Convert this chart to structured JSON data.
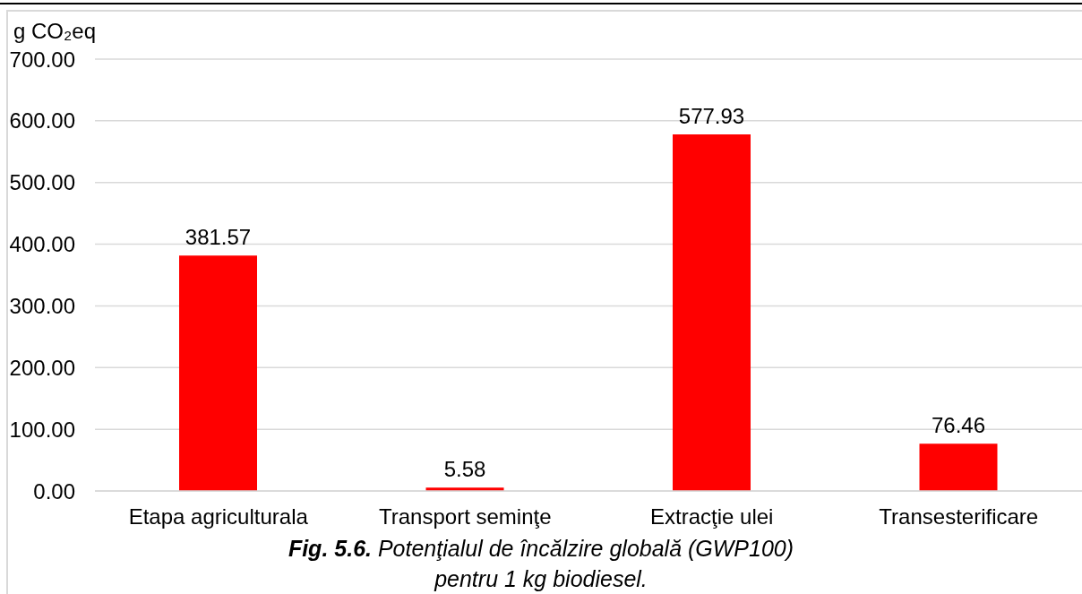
{
  "chart_data": {
    "type": "bar",
    "title": "Fig. 5.6. Potenţialul de încălzire globală (GWP100) pentru 1 kg biodiesel.",
    "ylabel": "g CO₂eq",
    "categories": [
      "Etapa agriculturala",
      "Transport seminţe",
      "Extracţie ulei",
      "Transesterificare"
    ],
    "values": [
      381.57,
      5.58,
      577.93,
      76.46
    ],
    "color": "#ff0000",
    "ylim": [
      0,
      700
    ],
    "yticks": [
      {
        "value": 0,
        "label": "0.00"
      },
      {
        "value": 100,
        "label": "100.00"
      },
      {
        "value": 200,
        "label": "200.00"
      },
      {
        "value": 300,
        "label": "300.00"
      },
      {
        "value": 400,
        "label": "400.00"
      },
      {
        "value": 500,
        "label": "500.00"
      },
      {
        "value": 600,
        "label": "600.00"
      },
      {
        "value": 700,
        "label": "700.00"
      }
    ],
    "grid": "y",
    "data_labels": true
  }
}
